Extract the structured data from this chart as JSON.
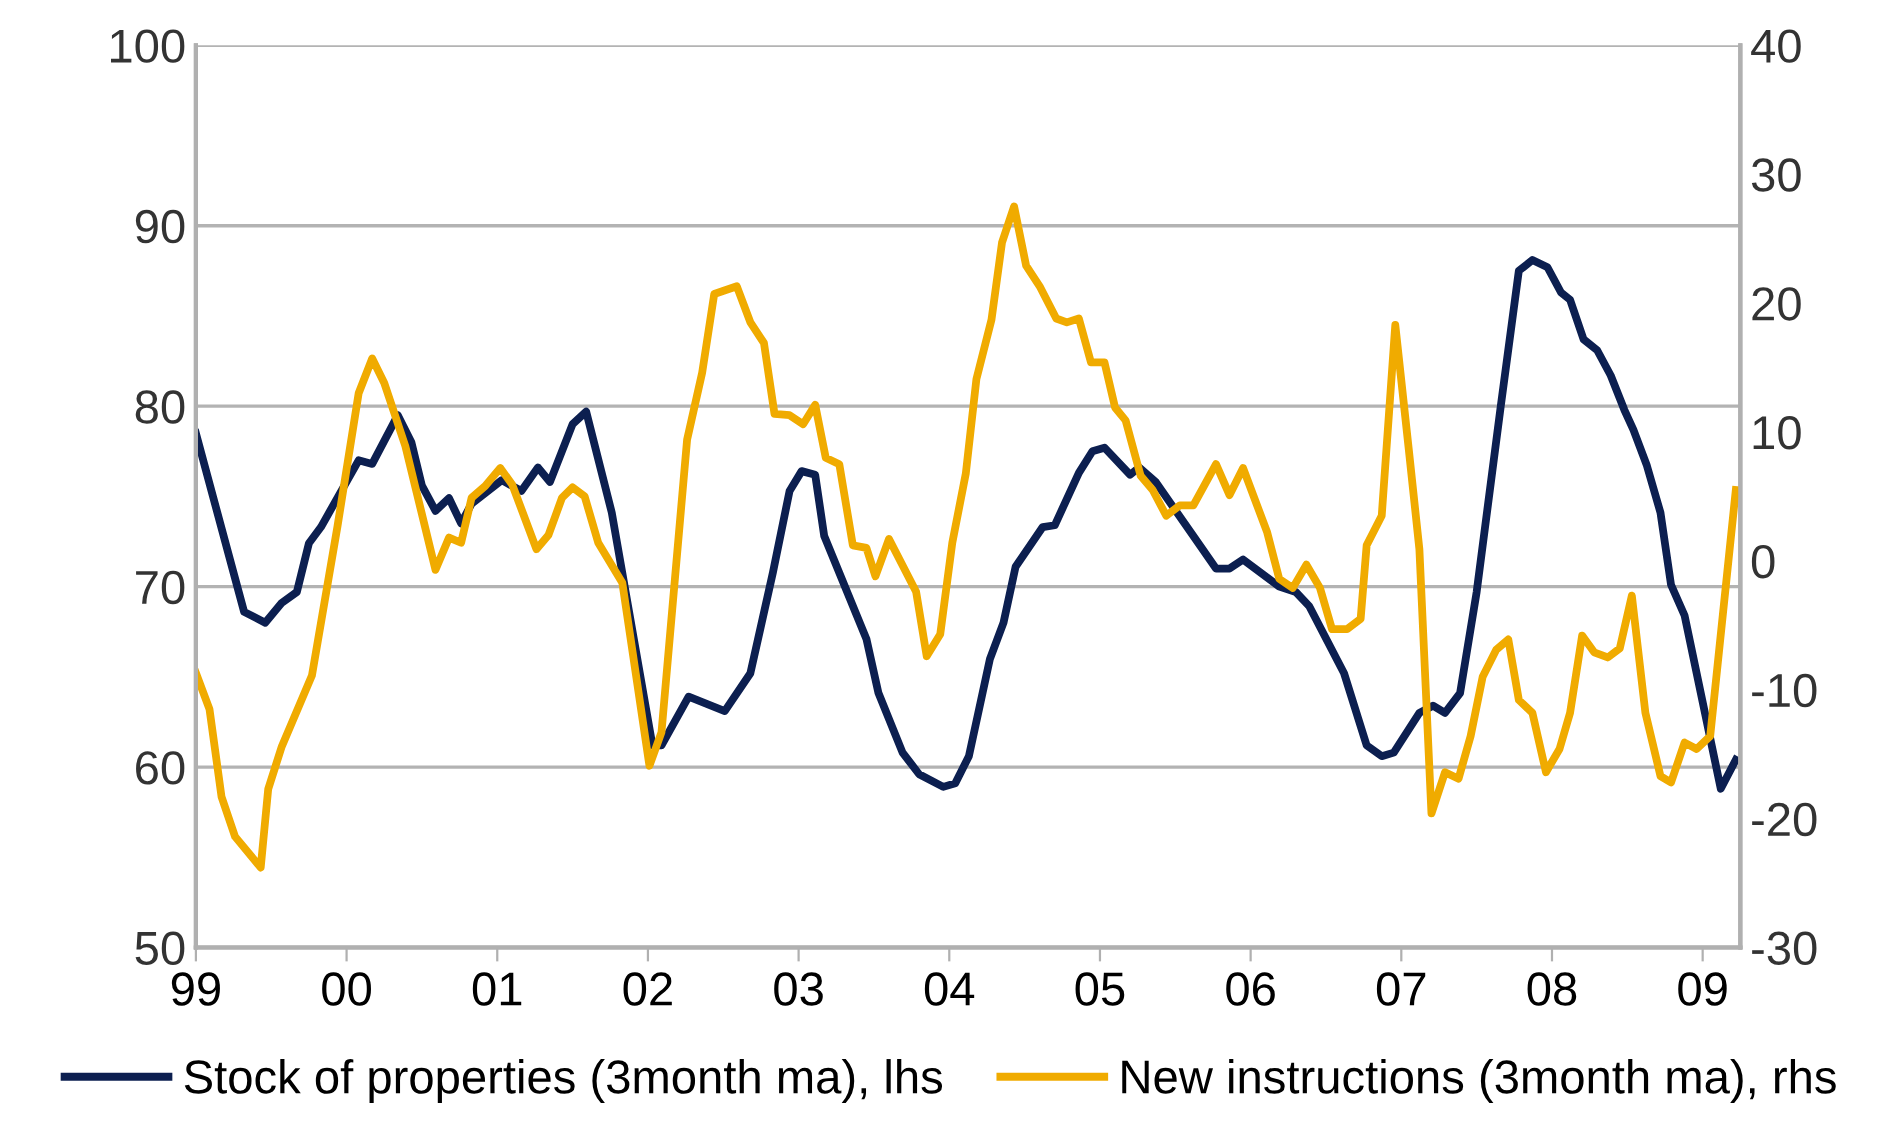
{
  "chart_data": {
    "type": "line",
    "xlim": [
      1999,
      2009.25
    ],
    "xticks": [
      {
        "value": 1999,
        "label": "99"
      },
      {
        "value": 2000,
        "label": "00"
      },
      {
        "value": 2001,
        "label": "01"
      },
      {
        "value": 2002,
        "label": "02"
      },
      {
        "value": 2003,
        "label": "03"
      },
      {
        "value": 2004,
        "label": "04"
      },
      {
        "value": 2005,
        "label": "05"
      },
      {
        "value": 2006,
        "label": "06"
      },
      {
        "value": 2007,
        "label": "07"
      },
      {
        "value": 2008,
        "label": "08"
      },
      {
        "value": 2009,
        "label": "09"
      }
    ],
    "ylim": [
      50,
      100
    ],
    "yticks": [
      50,
      60,
      70,
      80,
      90,
      100
    ],
    "y2lim": [
      -30,
      40
    ],
    "y2ticks": [
      -30,
      -20,
      -10,
      0,
      10,
      20,
      30,
      40
    ],
    "grid": "y",
    "legend": "bottom",
    "marker": "none",
    "line_style": "solid",
    "series": [
      {
        "name": "Stock of properties (3month ma), lhs",
        "color": "#0c1f50",
        "x": [
          1999.0,
          1999.32,
          1999.46,
          1999.57,
          1999.67,
          1999.75,
          1999.83,
          2000.08,
          2000.17,
          2000.34,
          2000.43,
          2000.5,
          2000.59,
          2000.68,
          2000.76,
          2000.83,
          2001.03,
          2001.16,
          2001.27,
          2001.35,
          2001.5,
          2001.59,
          2001.76,
          2002.03,
          2002.09,
          2002.27,
          2002.51,
          2002.68,
          2002.83,
          2002.94,
          2003.02,
          2003.11,
          2003.17,
          2003.45,
          2003.53,
          2003.69,
          2003.8,
          2003.96,
          2004.04,
          2004.13,
          2004.27,
          2004.36,
          2004.44,
          2004.62,
          2004.7,
          2004.86,
          2004.95,
          2005.03,
          2005.2,
          2005.26,
          2005.37,
          2005.62,
          2005.77,
          2005.86,
          2005.95,
          2006.19,
          2006.3,
          2006.39,
          2006.62,
          2006.77,
          2006.87,
          2006.95,
          2007.12,
          2007.21,
          2007.29,
          2007.39,
          2007.5,
          2007.66,
          2007.78,
          2007.87,
          2007.97,
          2008.06,
          2008.12,
          2008.21,
          2008.3,
          2008.39,
          2008.48,
          2008.54,
          2008.63,
          2008.72,
          2008.79,
          2008.88,
          2009.12,
          2009.22
        ],
        "values": [
          78.5,
          68.6,
          68.0,
          69.1,
          69.7,
          72.4,
          73.3,
          77.0,
          76.8,
          79.5,
          78.0,
          75.6,
          74.2,
          74.9,
          73.5,
          74.6,
          75.9,
          75.3,
          76.6,
          75.8,
          79.0,
          79.7,
          74.1,
          61.2,
          61.2,
          63.9,
          63.1,
          65.2,
          70.8,
          75.3,
          76.4,
          76.2,
          72.8,
          67.1,
          64.1,
          60.8,
          59.6,
          58.9,
          59.1,
          60.6,
          66.0,
          68.0,
          71.1,
          73.3,
          73.4,
          76.3,
          77.5,
          77.7,
          76.2,
          76.6,
          75.8,
          72.8,
          71.0,
          71.0,
          71.5,
          70.0,
          69.7,
          68.9,
          65.2,
          61.2,
          60.6,
          60.8,
          63.0,
          63.4,
          63.0,
          64.1,
          69.7,
          80.0,
          87.5,
          88.1,
          87.7,
          86.3,
          85.9,
          83.7,
          83.1,
          81.7,
          79.8,
          78.7,
          76.7,
          74.1,
          70.1,
          68.4,
          58.8,
          60.4
        ]
      },
      {
        "name": "New instructions (3month ma), rhs",
        "color": "#f0ab00",
        "axis": "y2",
        "x": [
          1999.0,
          1999.09,
          1999.17,
          1999.26,
          1999.43,
          1999.48,
          1999.57,
          1999.77,
          1999.94,
          2000.08,
          2000.17,
          2000.25,
          2000.39,
          2000.59,
          2000.68,
          2000.76,
          2000.83,
          2000.92,
          2001.02,
          2001.1,
          2001.26,
          2001.34,
          2001.43,
          2001.5,
          2001.58,
          2001.67,
          2001.83,
          2002.01,
          2002.09,
          2002.26,
          2002.36,
          2002.44,
          2002.59,
          2002.68,
          2002.77,
          2002.84,
          2002.94,
          2003.03,
          2003.11,
          2003.18,
          2003.27,
          2003.36,
          2003.45,
          2003.51,
          2003.6,
          2003.78,
          2003.85,
          2003.94,
          2004.02,
          2004.11,
          2004.18,
          2004.28,
          2004.35,
          2004.43,
          2004.51,
          2004.6,
          2004.71,
          2004.78,
          2004.86,
          2004.94,
          2005.03,
          2005.1,
          2005.17,
          2005.27,
          2005.35,
          2005.44,
          2005.53,
          2005.62,
          2005.77,
          2005.86,
          2005.95,
          2006.11,
          2006.19,
          2006.28,
          2006.37,
          2006.46,
          2006.54,
          2006.64,
          2006.73,
          2006.77,
          2006.87,
          2006.96,
          2007.05,
          2007.12,
          2007.2,
          2007.29,
          2007.38,
          2007.46,
          2007.54,
          2007.63,
          2007.71,
          2007.78,
          2007.87,
          2007.96,
          2008.05,
          2008.12,
          2008.2,
          2008.28,
          2008.37,
          2008.45,
          2008.53,
          2008.62,
          2008.72,
          2008.79,
          2008.88,
          2008.96,
          2009.05,
          2009.22
        ],
        "values": [
          -8.7,
          -11.5,
          -18.3,
          -21.4,
          -23.8,
          -17.7,
          -14.4,
          -8.9,
          2.7,
          13.0,
          15.7,
          13.8,
          8.9,
          -0.7,
          1.8,
          1.4,
          4.9,
          5.8,
          7.2,
          5.9,
          0.9,
          2.0,
          4.9,
          5.7,
          5.0,
          1.4,
          -1.7,
          -15.9,
          -13.3,
          9.4,
          14.6,
          20.7,
          21.3,
          18.5,
          16.9,
          11.4,
          11.3,
          10.6,
          12.1,
          8.0,
          7.5,
          1.2,
          1.0,
          -1.2,
          1.7,
          -2.4,
          -7.4,
          -5.7,
          1.4,
          6.8,
          14.1,
          18.7,
          24.7,
          27.5,
          22.9,
          21.3,
          18.8,
          18.5,
          18.8,
          15.4,
          15.4,
          11.9,
          10.9,
          6.6,
          5.5,
          3.5,
          4.3,
          4.3,
          7.5,
          5.1,
          7.2,
          2.2,
          -1.4,
          -2.1,
          -0.3,
          -2.1,
          -5.3,
          -5.3,
          -4.5,
          1.2,
          3.5,
          18.3,
          8.6,
          0.9,
          -19.6,
          -16.4,
          -16.9,
          -13.6,
          -9.0,
          -6.9,
          -6.1,
          -10.8,
          -11.8,
          -16.4,
          -14.6,
          -11.8,
          -5.8,
          -7.1,
          -7.5,
          -6.8,
          -2.7,
          -11.8,
          -16.7,
          -17.2,
          -14.1,
          -14.6,
          -13.6,
          5.5
        ]
      }
    ]
  }
}
